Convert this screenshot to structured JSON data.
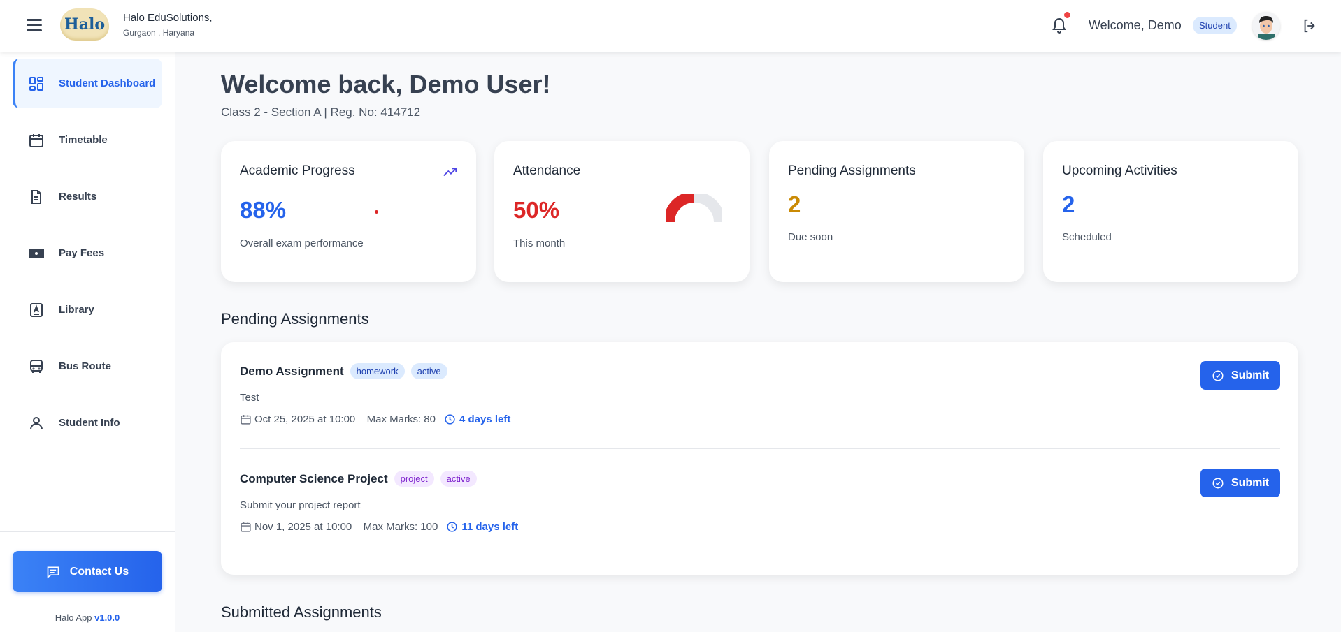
{
  "header": {
    "logo_text": "Halo",
    "org_name": "Halo EduSolutions,",
    "org_location": "Gurgaon , Haryana",
    "welcome": "Welcome, Demo",
    "role": "Student"
  },
  "sidebar": {
    "items": [
      {
        "label": "Student Dashboard",
        "icon": "dashboard-icon",
        "active": true
      },
      {
        "label": "Timetable",
        "icon": "calendar-icon"
      },
      {
        "label": "Results",
        "icon": "document-icon"
      },
      {
        "label": "Pay Fees",
        "icon": "money-icon"
      },
      {
        "label": "Library",
        "icon": "book-icon"
      },
      {
        "label": "Bus Route",
        "icon": "bus-icon"
      },
      {
        "label": "Student Info",
        "icon": "user-icon"
      }
    ],
    "contact": "Contact Us",
    "version_prefix": "Halo App",
    "version": "v1.0.0"
  },
  "main": {
    "title": "Welcome back, Demo User!",
    "subtitle": "Class 2 - Section A | Reg. No: 414712",
    "cards": [
      {
        "title": "Academic Progress",
        "value": "88%",
        "desc": "Overall exam performance",
        "color": "#2563eb"
      },
      {
        "title": "Attendance",
        "value": "50%",
        "desc": "This month",
        "color": "#dc2626",
        "gauge": 50
      },
      {
        "title": "Pending Assignments",
        "value": "2",
        "desc": "Due soon",
        "color": "#ca8a04"
      },
      {
        "title": "Upcoming Activities",
        "value": "2",
        "desc": "Scheduled",
        "color": "#2563eb"
      }
    ],
    "pending_heading": "Pending Assignments",
    "assignments": [
      {
        "title": "Demo Assignment",
        "tags": [
          "homework",
          "active"
        ],
        "desc": "Test",
        "due": "Oct 25, 2025 at 10:00",
        "marks": "Max Marks: 80",
        "left": "4 days left",
        "submit": "Submit"
      },
      {
        "title": "Computer Science Project",
        "tags": [
          "project",
          "active"
        ],
        "desc": "Submit your project report",
        "due": "Nov 1, 2025 at 10:00",
        "marks": "Max Marks: 100",
        "left": "11 days left",
        "submit": "Submit"
      }
    ],
    "submitted_heading": "Submitted Assignments"
  }
}
